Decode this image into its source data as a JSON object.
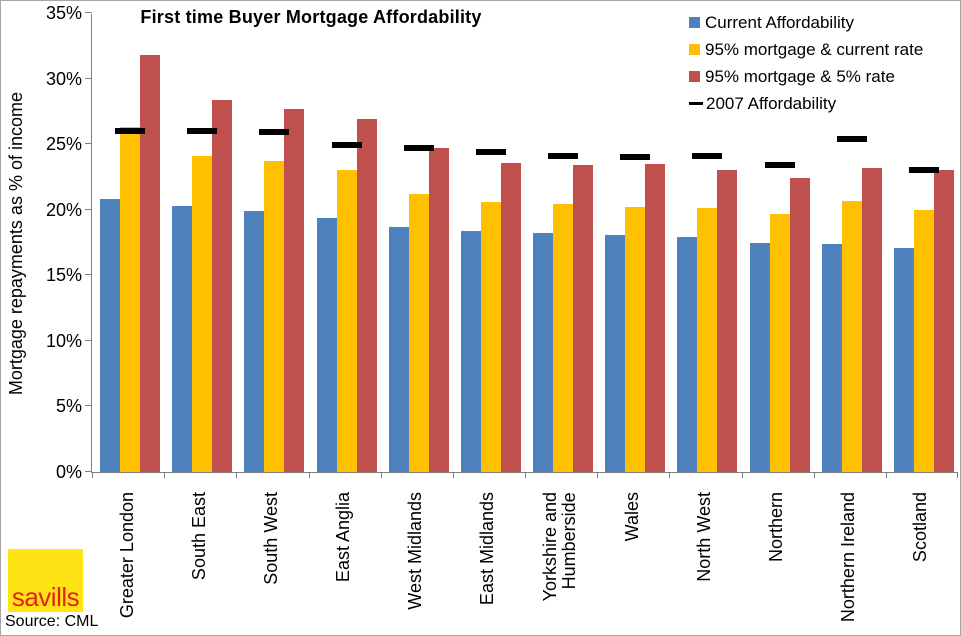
{
  "source": "Source: CML",
  "logo": {
    "text": "savills",
    "bg_color": "#FFE315",
    "text_color": "#E2231A"
  },
  "colors": {
    "axis": "#808080",
    "canvas_border": "#A6A6A6",
    "text": "#000000"
  },
  "chart_data": {
    "type": "bar",
    "title": "First time Buyer Mortgage Affordability",
    "xlabel": "",
    "ylabel": "Mortgage repayments as % of income",
    "ylim": [
      0,
      35
    ],
    "ytick_step": 5,
    "ytick_suffix": "%",
    "grid": false,
    "legend_position": "top-right",
    "categories": [
      "Greater London",
      "South East",
      "South West",
      "East Anglia",
      "West Midlands",
      "East Midlands",
      "Yorkshire and\nHumberside",
      "Wales",
      "North West",
      "Northern",
      "Northern Ireland",
      "Scotland"
    ],
    "series": [
      {
        "name": "Current Affordability",
        "marker": "square",
        "color": "#4F81BD",
        "values": [
          20.8,
          20.3,
          19.9,
          19.4,
          18.7,
          18.4,
          18.2,
          18.1,
          17.9,
          17.5,
          17.4,
          17.1
        ]
      },
      {
        "name": "95% mortgage & current rate",
        "marker": "square",
        "color": "#FFC000",
        "values": [
          26.3,
          24.1,
          23.7,
          23.0,
          21.2,
          20.6,
          20.4,
          20.2,
          20.1,
          19.7,
          20.7,
          20.0
        ]
      },
      {
        "name": "95% mortgage & 5% rate",
        "marker": "square",
        "color": "#C0504D",
        "values": [
          31.8,
          28.4,
          27.7,
          26.9,
          24.7,
          23.6,
          23.4,
          23.5,
          23.0,
          22.4,
          23.2,
          23.0
        ]
      },
      {
        "name": "2007 Affordability",
        "marker": "dash",
        "color": "#000000",
        "values": [
          26.0,
          26.0,
          25.9,
          24.9,
          24.7,
          24.4,
          24.1,
          24.0,
          24.1,
          23.4,
          25.4,
          23.0
        ]
      }
    ]
  }
}
